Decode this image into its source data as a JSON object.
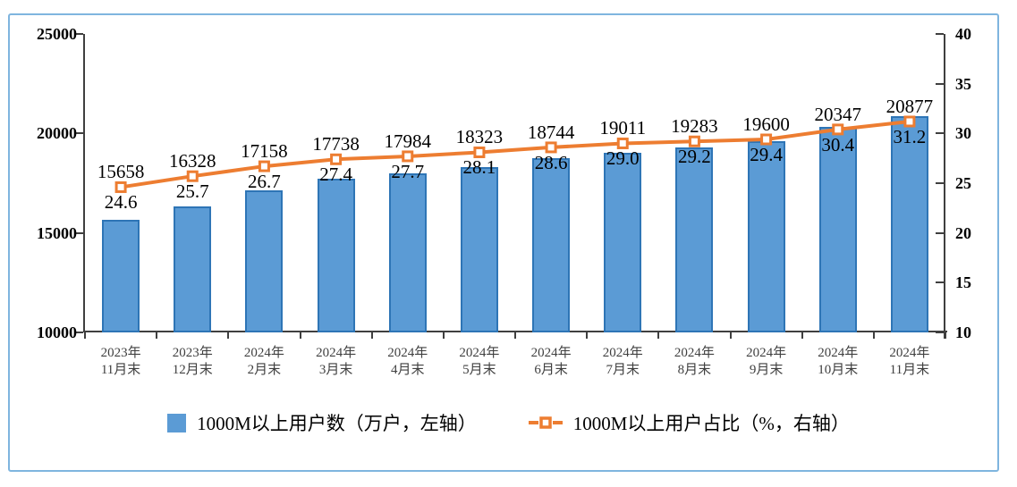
{
  "panel": {
    "border_color": "#7FB5DF",
    "background": "#FFFFFF"
  },
  "legend": {
    "position": "bottom"
  },
  "chart_data": {
    "type": "combo-bar-line",
    "categories": [
      "2023年11月末",
      "2023年12月末",
      "2024年2月末",
      "2024年3月末",
      "2024年4月末",
      "2024年5月末",
      "2024年6月末",
      "2024年7月末",
      "2024年8月末",
      "2024年9月末",
      "2024年10月末",
      "2024年11月末"
    ],
    "series": [
      {
        "name": "1000M以上用户数（万户，左轴）",
        "type": "bar",
        "axis": "left",
        "values": [
          15658,
          16328,
          17158,
          17738,
          17984,
          18323,
          18744,
          19011,
          19283,
          19600,
          20347,
          20877
        ],
        "labels": [
          "15658",
          "16328",
          "17158",
          "17738",
          "17984",
          "18323",
          "18744",
          "19011",
          "19283",
          "19600",
          "20347",
          "20877"
        ],
        "fill_color": "#5B9BD5",
        "border_color": "#2E75B6"
      },
      {
        "name": "1000M以上用户占比（%，右轴）",
        "type": "line",
        "axis": "right",
        "values": [
          24.6,
          25.7,
          26.7,
          27.4,
          27.7,
          28.1,
          28.6,
          29.0,
          29.2,
          29.4,
          30.4,
          31.2
        ],
        "labels": [
          "24.6",
          "25.7",
          "26.7",
          "27.4",
          "27.7",
          "28.1",
          "28.6",
          "29.0",
          "29.2",
          "29.4",
          "30.4",
          "31.2"
        ],
        "color": "#ED7D31",
        "marker": "open-square",
        "marker_fill": "#FFFFFF"
      }
    ],
    "left_axis": {
      "min": 10000,
      "max": 25000,
      "step": 5000,
      "ticks": [
        "25000",
        "20000",
        "15000",
        "10000"
      ]
    },
    "right_axis": {
      "min": 10,
      "max": 40,
      "step": 5,
      "ticks": [
        "40",
        "35",
        "30",
        "25",
        "20",
        "15",
        "10"
      ]
    },
    "grid": false,
    "legend_position": "bottom"
  }
}
